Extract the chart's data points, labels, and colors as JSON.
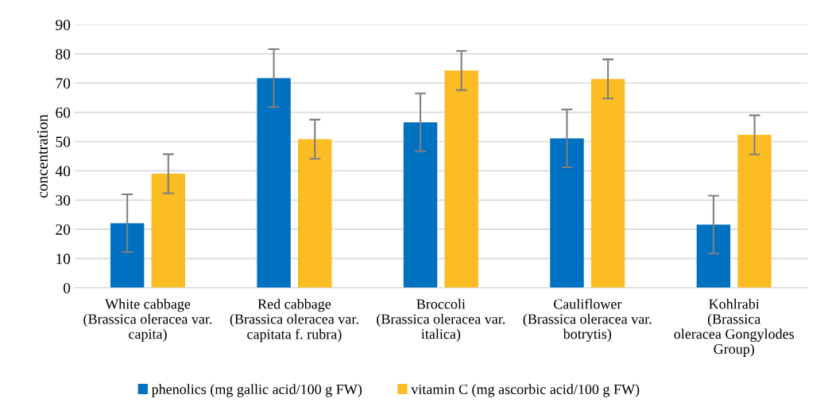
{
  "chart_data": {
    "type": "bar",
    "ylabel": "concentration",
    "categories": [
      "White cabbage\n(Brassica oleracea var.\ncapita)",
      "Red cabbage\n(Brassica oleracea var.\ncapitata f. rubra)",
      "Broccoli\n(Brassica oleracea var.\nitalica)",
      "Cauliflower\n(Brassica oleracea var.\nbotrytis)",
      "Kohlrabi\n(Brassica\noleracea Gongylodes\nGroup)"
    ],
    "series": [
      {
        "name": "phenolics (mg gallic acid/100 g FW)",
        "color": "#0070c0",
        "values": [
          22.1,
          71.7,
          56.6,
          51.1,
          21.6
        ],
        "errors": [
          9.9,
          9.9,
          9.9,
          9.9,
          9.9
        ]
      },
      {
        "name": "vitamin C (mg ascorbic acid/100 g FW)",
        "color": "#fbbc24",
        "values": [
          39.0,
          50.8,
          74.3,
          71.4,
          52.3
        ],
        "errors": [
          6.7,
          6.7,
          6.7,
          6.7,
          6.7
        ]
      }
    ],
    "ylim": [
      0,
      90
    ],
    "yticks": [
      0,
      10,
      20,
      30,
      40,
      50,
      60,
      70,
      80,
      90
    ],
    "grid": "y",
    "legend": "bottom"
  }
}
